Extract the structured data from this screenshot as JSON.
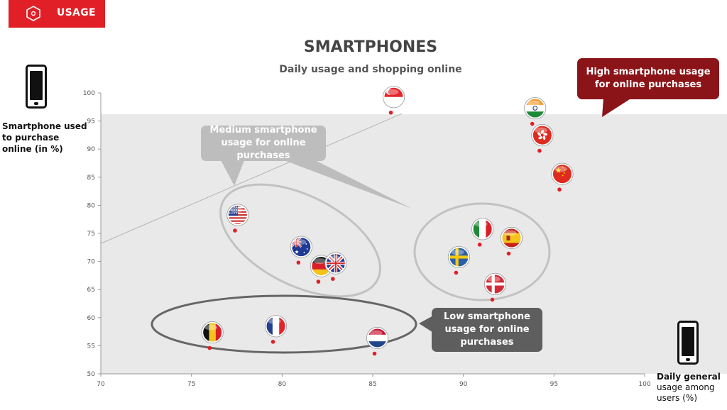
{
  "header": {
    "tab_label": "USAGE",
    "title": "SMARTPHONES",
    "subtitle": "Daily usage and shopping online"
  },
  "axes": {
    "ylabel": "Smartphone used to purchase online (in %)",
    "xlabel_line1": "Daily general",
    "xlabel_line2": "usage among users (%)"
  },
  "callouts": {
    "high": "High smartphone usage for online purchases",
    "medium": "Medium smartphone usage for online purchases",
    "low": "Low smartphone usage for online purchases"
  },
  "colors": {
    "accent": "#e01f26",
    "high_callout": "#8b1418",
    "medium_callout": "#bdbdbd",
    "low_callout": "#5e5e5e",
    "band": "#e9e9e9",
    "dot": "#e01f26"
  },
  "chart_data": {
    "type": "scatter",
    "title": "SMARTPHONES",
    "subtitle": "Daily usage and shopping online",
    "xlabel": "Daily general usage among users (%)",
    "ylabel": "Smartphone used to purchase online (in %)",
    "xlim": [
      70,
      100
    ],
    "ylim": [
      50,
      100
    ],
    "xticks": [
      70,
      75,
      80,
      85,
      90,
      95,
      100
    ],
    "yticks": [
      50,
      55,
      60,
      65,
      70,
      75,
      80,
      85,
      90,
      95,
      100
    ],
    "grid": false,
    "points": [
      {
        "country": "Singapore",
        "flag": "singapore",
        "x": 86.0,
        "y": 96.5
      },
      {
        "country": "India",
        "flag": "india",
        "x": 93.8,
        "y": 94.5
      },
      {
        "country": "Hong Kong",
        "flag": "hongkong",
        "x": 94.2,
        "y": 89.7
      },
      {
        "country": "China",
        "flag": "china",
        "x": 95.3,
        "y": 82.8
      },
      {
        "country": "USA",
        "flag": "usa",
        "x": 77.4,
        "y": 75.5
      },
      {
        "country": "Australia",
        "flag": "australia",
        "x": 80.9,
        "y": 69.8
      },
      {
        "country": "Germany",
        "flag": "germany",
        "x": 82.0,
        "y": 66.4
      },
      {
        "country": "UK",
        "flag": "uk",
        "x": 82.8,
        "y": 66.9
      },
      {
        "country": "Italy",
        "flag": "italy",
        "x": 90.9,
        "y": 73.0
      },
      {
        "country": "Spain",
        "flag": "spain",
        "x": 92.5,
        "y": 71.4
      },
      {
        "country": "Sweden",
        "flag": "sweden",
        "x": 89.6,
        "y": 68.0
      },
      {
        "country": "Denmark",
        "flag": "denmark",
        "x": 91.6,
        "y": 63.2
      },
      {
        "country": "Belgium",
        "flag": "belgium",
        "x": 76.0,
        "y": 54.6
      },
      {
        "country": "France",
        "flag": "france",
        "x": 79.5,
        "y": 55.7
      },
      {
        "country": "Netherlands",
        "flag": "netherlands",
        "x": 85.1,
        "y": 53.6
      }
    ],
    "trend_line": {
      "from": [
        70,
        73.2
      ],
      "to": [
        86.6,
        96.3
      ]
    },
    "band_upper_y": 96.2
  }
}
